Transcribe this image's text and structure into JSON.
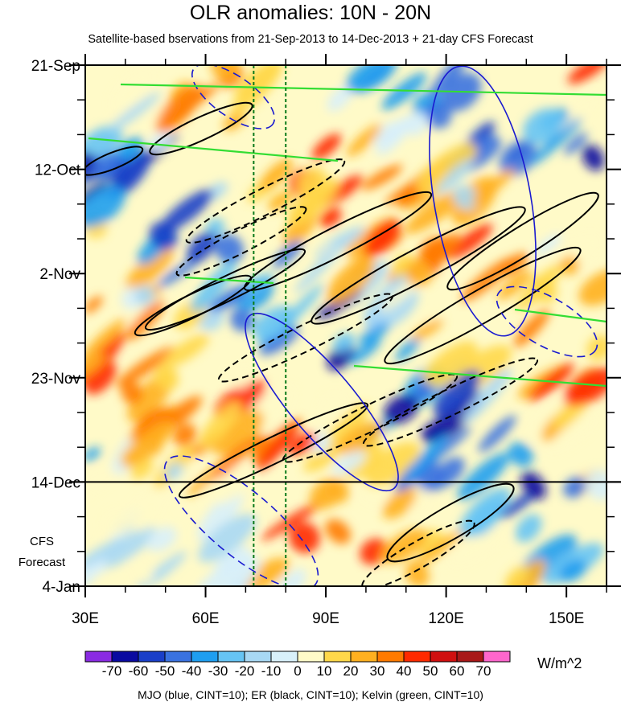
{
  "chart_data": {
    "type": "heatmap",
    "title": "OLR anomalies: 10N - 20N",
    "subtitle": "Satellite-based bservations from 21-Sep-2013 to 14-Dec-2013 + 21-day CFS Forecast",
    "x_ticks": [
      "30E",
      "60E",
      "90E",
      "120E",
      "150E"
    ],
    "x_tick_values": [
      30,
      60,
      90,
      120,
      150
    ],
    "xlim": [
      30,
      160
    ],
    "y_ticks": [
      "21-Sep",
      "12-Oct",
      "2-Nov",
      "23-Nov",
      "14-Dec",
      "4-Jan"
    ],
    "y_tick_values": [
      0,
      21,
      42,
      63,
      84,
      105
    ],
    "ylim": [
      0,
      105
    ],
    "forecast_start_day": 84,
    "forecast_label_line1": "CFS",
    "forecast_label_line2": "Forecast",
    "reference_longitudes": [
      72,
      80
    ],
    "colorbar": {
      "labels": [
        "-70",
        "-60",
        "-50",
        "-40",
        "-30",
        "-20",
        "-10",
        "0",
        "10",
        "20",
        "30",
        "40",
        "50",
        "60",
        "70"
      ],
      "colors": [
        "#8a2be2",
        "#0a0aa0",
        "#1a3fc8",
        "#3a72e0",
        "#1e9ef0",
        "#66c4f4",
        "#a8d8f4",
        "#d8f0fa",
        "#fffac8",
        "#ffd84a",
        "#ffb020",
        "#ff7a00",
        "#ff2a00",
        "#d01010",
        "#a81818",
        "#ff66cc"
      ],
      "units": "W/m^2"
    },
    "footer": "MJO (blue, CINT=10); ER (black, CINT=10); Kelvin (green, CINT=10)"
  }
}
